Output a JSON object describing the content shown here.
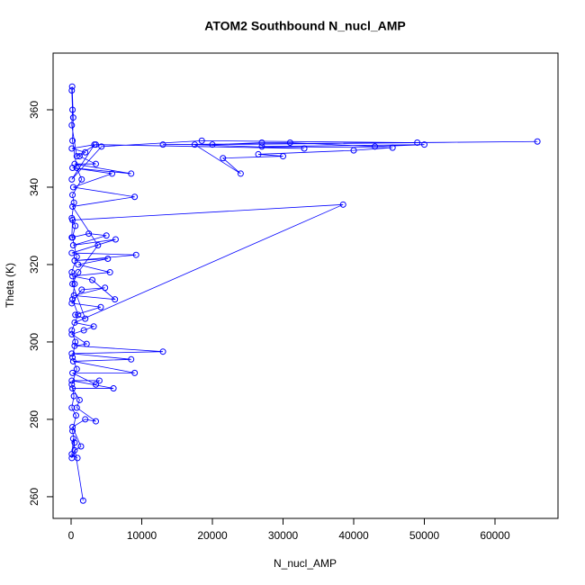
{
  "chart_data": {
    "type": "line",
    "title": "ATOM2 Southbound N_nucl_AMP",
    "x_label": "N_nucl_AMP",
    "y_label": "Theta (K)",
    "color": "#0000ff",
    "markers": "open-circle",
    "xlim": [
      -2548,
      68917
    ],
    "ylim": [
      254.4,
      374.65
    ],
    "xticks": [
      0,
      10000,
      20000,
      30000,
      40000,
      50000,
      60000
    ],
    "yticks": [
      260,
      280,
      300,
      320,
      340,
      360
    ],
    "x": [
      1700,
      300,
      100,
      500,
      1400,
      200,
      2000,
      3500,
      800,
      1200,
      200,
      6000,
      100,
      4000,
      3500,
      200,
      9000,
      300,
      8500,
      100,
      13000,
      500,
      2200,
      100,
      1800,
      3200,
      500,
      38500,
      200,
      100,
      2500,
      5000,
      300,
      6300,
      100,
      9200,
      500,
      5200,
      1000,
      5500,
      200,
      3000,
      6200,
      400,
      4800,
      1500,
      100,
      4200,
      600,
      2000,
      200,
      1000,
      3800,
      200,
      9000,
      300,
      5800,
      200,
      8500,
      500,
      3500,
      1200,
      2000,
      100,
      3300,
      100,
      4300,
      18500,
      49000,
      13000,
      66000,
      20000,
      27000,
      31000,
      43000,
      50000,
      27000,
      45500,
      40000,
      26500,
      30000,
      21500,
      24000,
      17500,
      33000,
      3500,
      800,
      100,
      200,
      100,
      150,
      300,
      200,
      800,
      1500,
      200,
      400,
      100,
      600,
      200,
      800,
      100,
      500,
      200,
      1000,
      100,
      600,
      200,
      800,
      100,
      400,
      100,
      700,
      200,
      500,
      100,
      900
    ],
    "values": [
      259,
      275,
      270,
      272,
      273,
      278,
      280,
      279.5,
      283,
      285,
      288,
      288,
      290,
      290,
      289,
      292,
      292,
      295,
      295.5,
      297,
      297.5,
      299,
      299.5,
      302,
      303,
      304,
      305,
      335.5,
      331.5,
      327,
      328,
      327.5,
      325,
      326.5,
      323,
      322.5,
      321,
      321.5,
      320,
      318,
      317,
      316,
      311,
      312,
      314,
      313.5,
      310,
      309,
      307,
      306,
      315,
      318,
      325,
      335,
      337.5,
      340,
      343.5,
      345,
      343.5,
      346,
      346,
      348,
      349,
      350,
      351,
      342,
      350.5,
      352,
      351.5,
      351,
      351.8,
      351,
      351.5,
      351.5,
      350.5,
      351,
      350.5,
      350.2,
      349.5,
      348.5,
      348,
      347.5,
      343.5,
      351,
      350,
      351,
      348,
      356,
      360,
      365,
      366,
      358,
      352,
      345,
      342,
      338,
      336,
      332,
      330,
      327,
      322,
      318,
      315,
      311,
      307,
      303,
      300,
      296,
      293,
      289,
      286,
      283,
      281,
      277,
      274,
      271,
      270
    ]
  }
}
